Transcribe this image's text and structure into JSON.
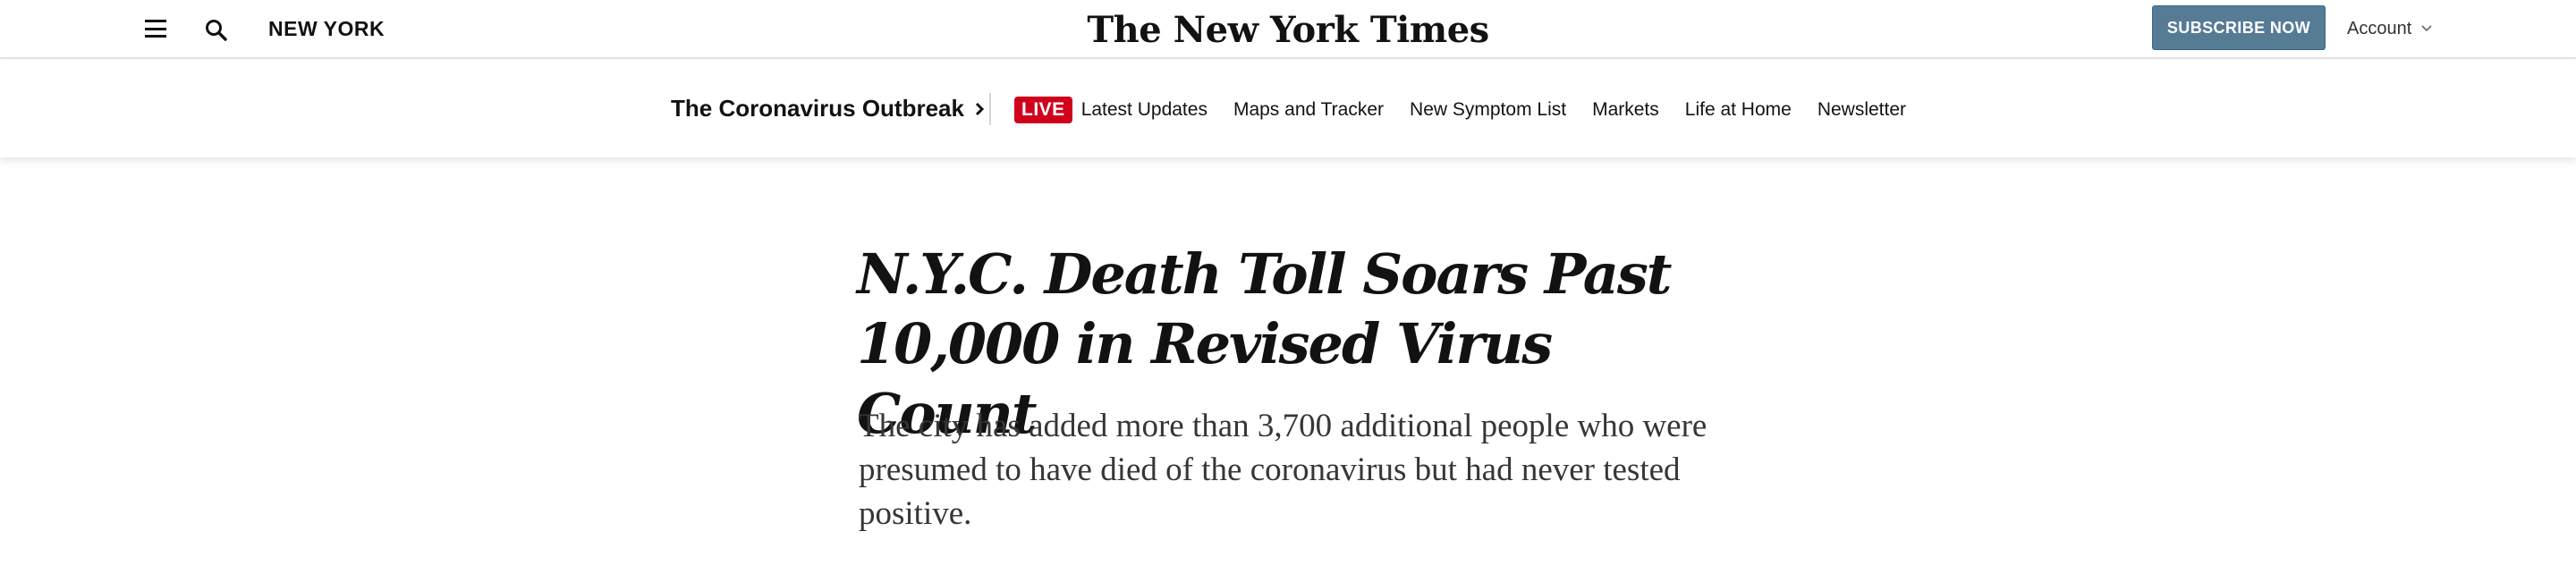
{
  "header": {
    "section": "NEW YORK",
    "logo": "The New York Times",
    "subscribe_label": "SUBSCRIBE NOW",
    "account_label": "Account",
    "icons": {
      "menu": "hamburger-menu-icon",
      "search": "search-icon",
      "account_chevron": "chevron-down-icon"
    }
  },
  "covid_nav": {
    "title": "The Coronavirus Outbreak",
    "live_badge": "LIVE",
    "items": [
      {
        "label": "Latest Updates"
      },
      {
        "label": "Maps and Tracker"
      },
      {
        "label": "New Symptom List"
      },
      {
        "label": "Markets"
      },
      {
        "label": "Life at Home"
      },
      {
        "label": "Newsletter"
      }
    ]
  },
  "article": {
    "headline": "N.Y.C. Death Toll Soars Past 10,000 in Revised Virus Count",
    "summary": "The city has added more than 3,700 additional people who were presumed to have died of the coronavirus but had never tested positive."
  },
  "colors": {
    "subscribe_bg": "#567b95",
    "live_red": "#d0021b",
    "text": "#121212",
    "summary_text": "#363636"
  }
}
